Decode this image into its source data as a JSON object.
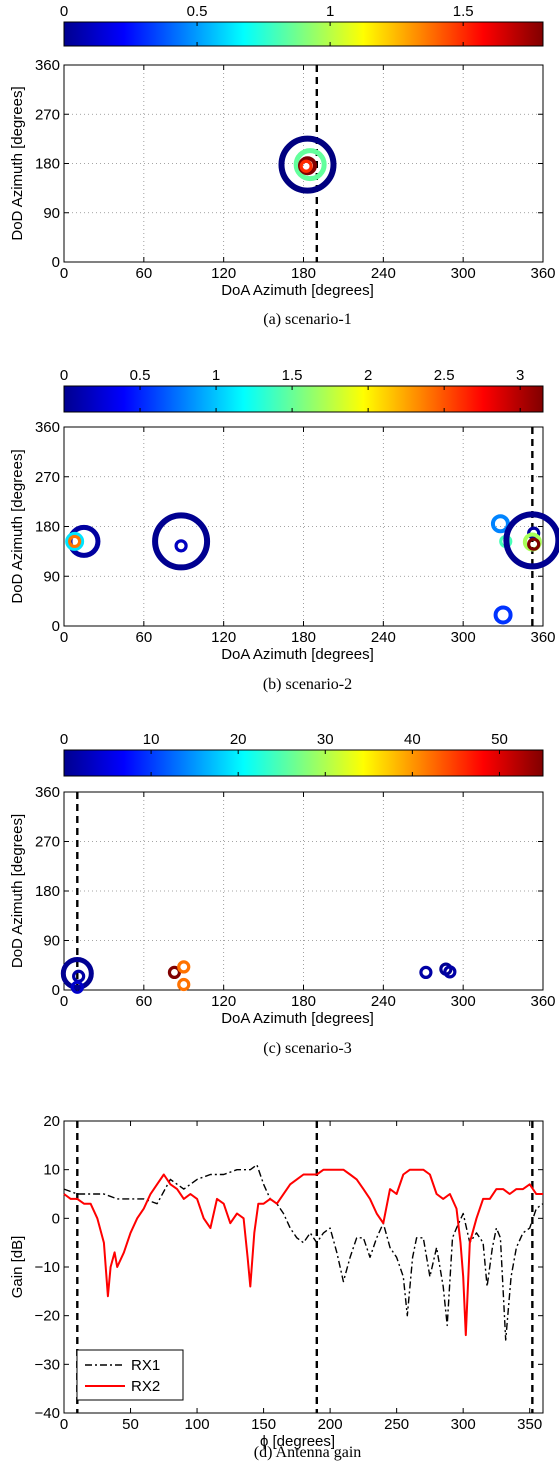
{
  "chart_data": [
    {
      "type": "scatter",
      "caption": "(a) scenario-1",
      "xlabel": "DoA Azimuth [degrees]",
      "ylabel": "DoD Azimuth [degrees]",
      "xlim": [
        0,
        360
      ],
      "ylim": [
        0,
        360
      ],
      "xticks": [
        "0",
        "60",
        "120",
        "180",
        "240",
        "300",
        "360"
      ],
      "yticks": [
        "0",
        "90",
        "180",
        "270",
        "360"
      ],
      "grid": true,
      "colorbar": {
        "position": "top",
        "range": [
          0,
          1.8
        ],
        "ticks": [
          "0",
          "0.5",
          "1",
          "1.5"
        ],
        "tick_values": [
          0,
          0.5,
          1,
          1.5
        ]
      },
      "dashed_line_x": [
        190
      ],
      "points": [
        {
          "x": 183,
          "y": 178,
          "size": "large",
          "color_value": 0.0
        },
        {
          "x": 185,
          "y": 178,
          "size": "medium",
          "color_value": 0.85
        },
        {
          "x": 183,
          "y": 176,
          "size": "small",
          "color_value": 1.8
        },
        {
          "x": 182,
          "y": 175,
          "size": "tiny",
          "color_value": 1.5
        }
      ]
    },
    {
      "type": "scatter",
      "caption": "(b) scenario-2",
      "xlabel": "DoA Azimuth [degrees]",
      "ylabel": "DoD Azimuth [degrees]",
      "xlim": [
        0,
        360
      ],
      "ylim": [
        0,
        360
      ],
      "xticks": [
        "0",
        "60",
        "120",
        "180",
        "240",
        "300",
        "360"
      ],
      "yticks": [
        "0",
        "90",
        "180",
        "270",
        "360"
      ],
      "grid": true,
      "colorbar": {
        "position": "top",
        "range": [
          0,
          3.15
        ],
        "ticks": [
          "0",
          "0.5",
          "1",
          "1.5",
          "2",
          "2.5",
          "3"
        ],
        "tick_values": [
          0,
          0.5,
          1,
          1.5,
          2,
          2.5,
          3
        ]
      },
      "dashed_line_x": [
        352
      ],
      "points": [
        {
          "x": 15,
          "y": 153,
          "size": "medium",
          "color_value": 0.1
        },
        {
          "x": 8,
          "y": 153,
          "size": "small",
          "color_value": 1.1
        },
        {
          "x": 8,
          "y": 153,
          "size": "tiny",
          "color_value": 2.4
        },
        {
          "x": 88,
          "y": 153,
          "size": "large",
          "color_value": 0.05
        },
        {
          "x": 88,
          "y": 145,
          "size": "tiny",
          "color_value": 0.2
        },
        {
          "x": 328,
          "y": 185,
          "size": "small",
          "color_value": 0.8
        },
        {
          "x": 332,
          "y": 153,
          "size": "tiny",
          "color_value": 1.4
        },
        {
          "x": 330,
          "y": 20,
          "size": "small",
          "color_value": 0.55
        },
        {
          "x": 352,
          "y": 155,
          "size": "large",
          "color_value": 0.05
        },
        {
          "x": 353,
          "y": 168,
          "size": "tiny",
          "color_value": 0.1
        },
        {
          "x": 352,
          "y": 152,
          "size": "small",
          "color_value": 1.7
        },
        {
          "x": 353,
          "y": 148,
          "size": "tiny",
          "color_value": 3.15
        }
      ]
    },
    {
      "type": "scatter",
      "caption": "(c) scenario-3",
      "xlabel": "DoA Azimuth [degrees]",
      "ylabel": "DoD Azimuth [degrees]",
      "xlim": [
        0,
        360
      ],
      "ylim": [
        0,
        360
      ],
      "xticks": [
        "0",
        "60",
        "120",
        "180",
        "240",
        "300",
        "360"
      ],
      "yticks": [
        "0",
        "90",
        "180",
        "270",
        "360"
      ],
      "grid": true,
      "colorbar": {
        "position": "top",
        "range": [
          0,
          55
        ],
        "ticks": [
          "0",
          "10",
          "20",
          "30",
          "40",
          "50"
        ],
        "tick_values": [
          0,
          10,
          20,
          30,
          40,
          50
        ]
      },
      "dashed_line_x": [
        10
      ],
      "points": [
        {
          "x": 10,
          "y": 30,
          "size": "medium",
          "color_value": 1
        },
        {
          "x": 11,
          "y": 25,
          "size": "tiny",
          "color_value": 2
        },
        {
          "x": 10,
          "y": 5,
          "size": "tiny",
          "color_value": 4
        },
        {
          "x": 83,
          "y": 32,
          "size": "tiny",
          "color_value": 55
        },
        {
          "x": 90,
          "y": 42,
          "size": "tiny",
          "color_value": 42
        },
        {
          "x": 90,
          "y": 10,
          "size": "tiny",
          "color_value": 42
        },
        {
          "x": 272,
          "y": 32,
          "size": "tiny",
          "color_value": 2
        },
        {
          "x": 287,
          "y": 38,
          "size": "tiny",
          "color_value": 1
        },
        {
          "x": 290,
          "y": 33,
          "size": "tiny",
          "color_value": 2
        }
      ]
    },
    {
      "type": "line",
      "caption": "(d) Antenna gain",
      "xlabel": "ϕ [degrees]",
      "ylabel": "Gain [dB]",
      "xlim": [
        0,
        360
      ],
      "ylim": [
        -40,
        20
      ],
      "xticks": [
        "0",
        "50",
        "100",
        "150",
        "200",
        "250",
        "300",
        "350"
      ],
      "xtick_values": [
        0,
        50,
        100,
        150,
        200,
        250,
        300,
        350
      ],
      "yticks": [
        "−40",
        "−30",
        "−20",
        "−10",
        "0",
        "10",
        "20"
      ],
      "ytick_values": [
        -40,
        -30,
        -20,
        -10,
        0,
        10,
        20
      ],
      "grid": false,
      "legend": "bottom-left",
      "dashed_line_x": [
        10,
        190,
        352
      ],
      "series": [
        {
          "name": "RX1",
          "color": "#000000",
          "dash": "dash-dot",
          "x": [
            0,
            10,
            20,
            30,
            40,
            50,
            60,
            70,
            80,
            90,
            100,
            110,
            120,
            130,
            140,
            145,
            150,
            155,
            160,
            165,
            170,
            175,
            180,
            185,
            190,
            195,
            200,
            205,
            210,
            215,
            220,
            225,
            230,
            235,
            240,
            245,
            250,
            255,
            258,
            262,
            265,
            270,
            275,
            280,
            285,
            288,
            292,
            295,
            300,
            305,
            310,
            315,
            318,
            322,
            325,
            328,
            332,
            336,
            340,
            345,
            350,
            355,
            360
          ],
          "y": [
            6,
            5,
            5,
            5,
            4,
            4,
            4,
            3,
            8,
            6,
            8,
            9,
            9,
            10,
            10,
            11,
            7,
            4,
            3,
            1,
            -2,
            -4,
            -5,
            -3,
            -5,
            -3,
            -2,
            -7,
            -13,
            -8,
            -4,
            -4,
            -8,
            -4,
            -1,
            -6,
            -8,
            -12,
            -20,
            -8,
            -4,
            -4,
            -12,
            -6,
            -14,
            -22,
            -4,
            -2,
            1,
            -5,
            -3,
            -5,
            -14,
            -6,
            -2,
            -4,
            -25,
            -12,
            -6,
            -3,
            -2,
            2,
            3
          ]
        },
        {
          "name": "RX2",
          "color": "#ff0000",
          "dash": "solid",
          "x": [
            0,
            5,
            10,
            15,
            20,
            25,
            30,
            33,
            35,
            38,
            40,
            45,
            50,
            55,
            60,
            65,
            70,
            75,
            80,
            85,
            90,
            95,
            100,
            105,
            110,
            115,
            120,
            125,
            130,
            135,
            138,
            140,
            143,
            146,
            150,
            155,
            160,
            165,
            170,
            175,
            180,
            185,
            190,
            195,
            200,
            205,
            210,
            215,
            220,
            225,
            230,
            235,
            240,
            245,
            250,
            255,
            260,
            265,
            270,
            275,
            280,
            285,
            290,
            295,
            298,
            300,
            302,
            305,
            310,
            315,
            320,
            325,
            330,
            335,
            340,
            345,
            350,
            355,
            360
          ],
          "y": [
            5,
            4,
            4,
            3,
            3,
            0,
            -5,
            -16,
            -10,
            -7,
            -10,
            -7,
            -3,
            0,
            2,
            5,
            7,
            9,
            7,
            6,
            4,
            5,
            4,
            0,
            -2,
            4,
            3,
            -1,
            1,
            0,
            -8,
            -14,
            -3,
            3,
            3,
            4,
            3,
            5,
            7,
            8,
            9,
            9,
            9,
            10,
            10,
            10,
            10,
            9,
            8,
            6,
            4,
            1,
            -1,
            6,
            5,
            9,
            10,
            10,
            10,
            9,
            5,
            4,
            5,
            2,
            -5,
            -12,
            -24,
            -5,
            0,
            4,
            4,
            6,
            6,
            5,
            6,
            6,
            7,
            5,
            5
          ]
        }
      ]
    }
  ]
}
